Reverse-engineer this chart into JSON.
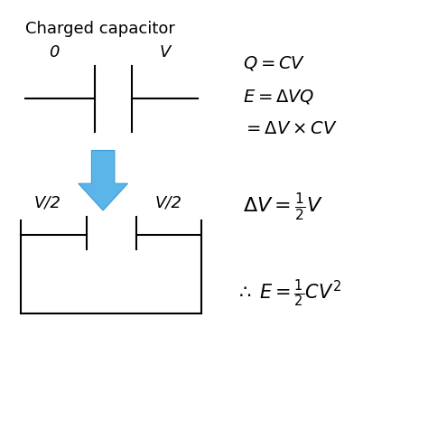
{
  "title": "Charged capacitor",
  "title_fontsize": 13,
  "bg_color": "#ffffff",
  "label_0": "0",
  "label_V": "V",
  "label_V2_left": "V/2",
  "label_V2_right": "V/2",
  "arrow_color": "#5bb5e8",
  "arrow_edge_color": "#3a9ad4",
  "line_color": "#000000",
  "text_color": "#000000",
  "eq_fontsize": 14,
  "label_fontsize": 13,
  "lw": 1.5,
  "xlim": [
    0,
    10
  ],
  "ylim": [
    0,
    10
  ],
  "eq_x": 5.7,
  "eq1_y": 8.9,
  "eq2_y": 8.1,
  "eq3_y": 7.3,
  "eq4_y": 5.6,
  "eq5_y": 3.5
}
